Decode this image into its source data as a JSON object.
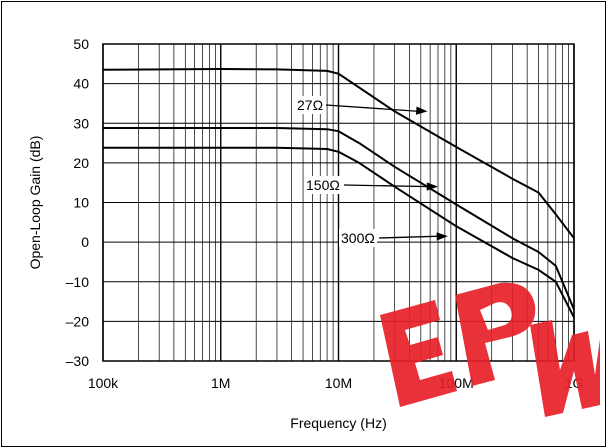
{
  "chart_data": {
    "type": "line",
    "x_scale": "log",
    "xlim": [
      100000,
      1000000000
    ],
    "ylim": [
      -30,
      50
    ],
    "xlabel": "Frequency (Hz)",
    "ylabel": "Open-Loop Gain (dB)",
    "x_ticks": [
      {
        "value": 100000,
        "label": "100k"
      },
      {
        "value": 1000000,
        "label": "1M"
      },
      {
        "value": 10000000,
        "label": "10M"
      },
      {
        "value": 100000000,
        "label": "100M"
      },
      {
        "value": 1000000000,
        "label": "1G"
      }
    ],
    "y_ticks": [
      {
        "value": 50,
        "label": "50"
      },
      {
        "value": 40,
        "label": "40"
      },
      {
        "value": 30,
        "label": "30"
      },
      {
        "value": 20,
        "label": "20"
      },
      {
        "value": 10,
        "label": "10"
      },
      {
        "value": 0,
        "label": "0"
      },
      {
        "value": -10,
        "label": "–10"
      },
      {
        "value": -20,
        "label": "–20"
      },
      {
        "value": -30,
        "label": "–30"
      }
    ],
    "grid": "log-minor",
    "series": [
      {
        "name": "27Ω",
        "x": [
          100000,
          1000000,
          3000000,
          8000000,
          10000000,
          15000000,
          30000000,
          100000000,
          300000000,
          500000000,
          700000000,
          1000000000
        ],
        "y": [
          43.5,
          43.7,
          43.6,
          43.2,
          42.5,
          39,
          33,
          24,
          16,
          12.5,
          7,
          1
        ]
      },
      {
        "name": "150Ω",
        "x": [
          100000,
          1000000,
          3000000,
          8000000,
          10000000,
          15000000,
          30000000,
          100000000,
          300000000,
          500000000,
          700000000,
          1000000000
        ],
        "y": [
          28.8,
          28.8,
          28.8,
          28.5,
          28,
          25,
          19,
          9.5,
          1,
          -2.5,
          -6,
          -17
        ]
      },
      {
        "name": "300Ω",
        "x": [
          100000,
          1000000,
          3000000,
          8000000,
          10000000,
          15000000,
          30000000,
          100000000,
          300000000,
          500000000,
          700000000,
          1000000000
        ],
        "y": [
          23.8,
          23.8,
          23.8,
          23.5,
          22.8,
          20,
          14,
          4,
          -4,
          -7,
          -10,
          -19
        ]
      }
    ],
    "annotations": [
      {
        "text": "27Ω",
        "series": "27Ω",
        "arrow_to": {
          "x": 57000000,
          "y": 33
        }
      },
      {
        "text": "150Ω",
        "series": "150Ω",
        "arrow_to": {
          "x": 70000000,
          "y": 14
        }
      },
      {
        "text": "300Ω",
        "series": "300Ω",
        "arrow_to": {
          "x": 85000000,
          "y": 1.5
        }
      }
    ]
  },
  "watermark": {
    "text": "EPW",
    "color": "#e8202a"
  }
}
